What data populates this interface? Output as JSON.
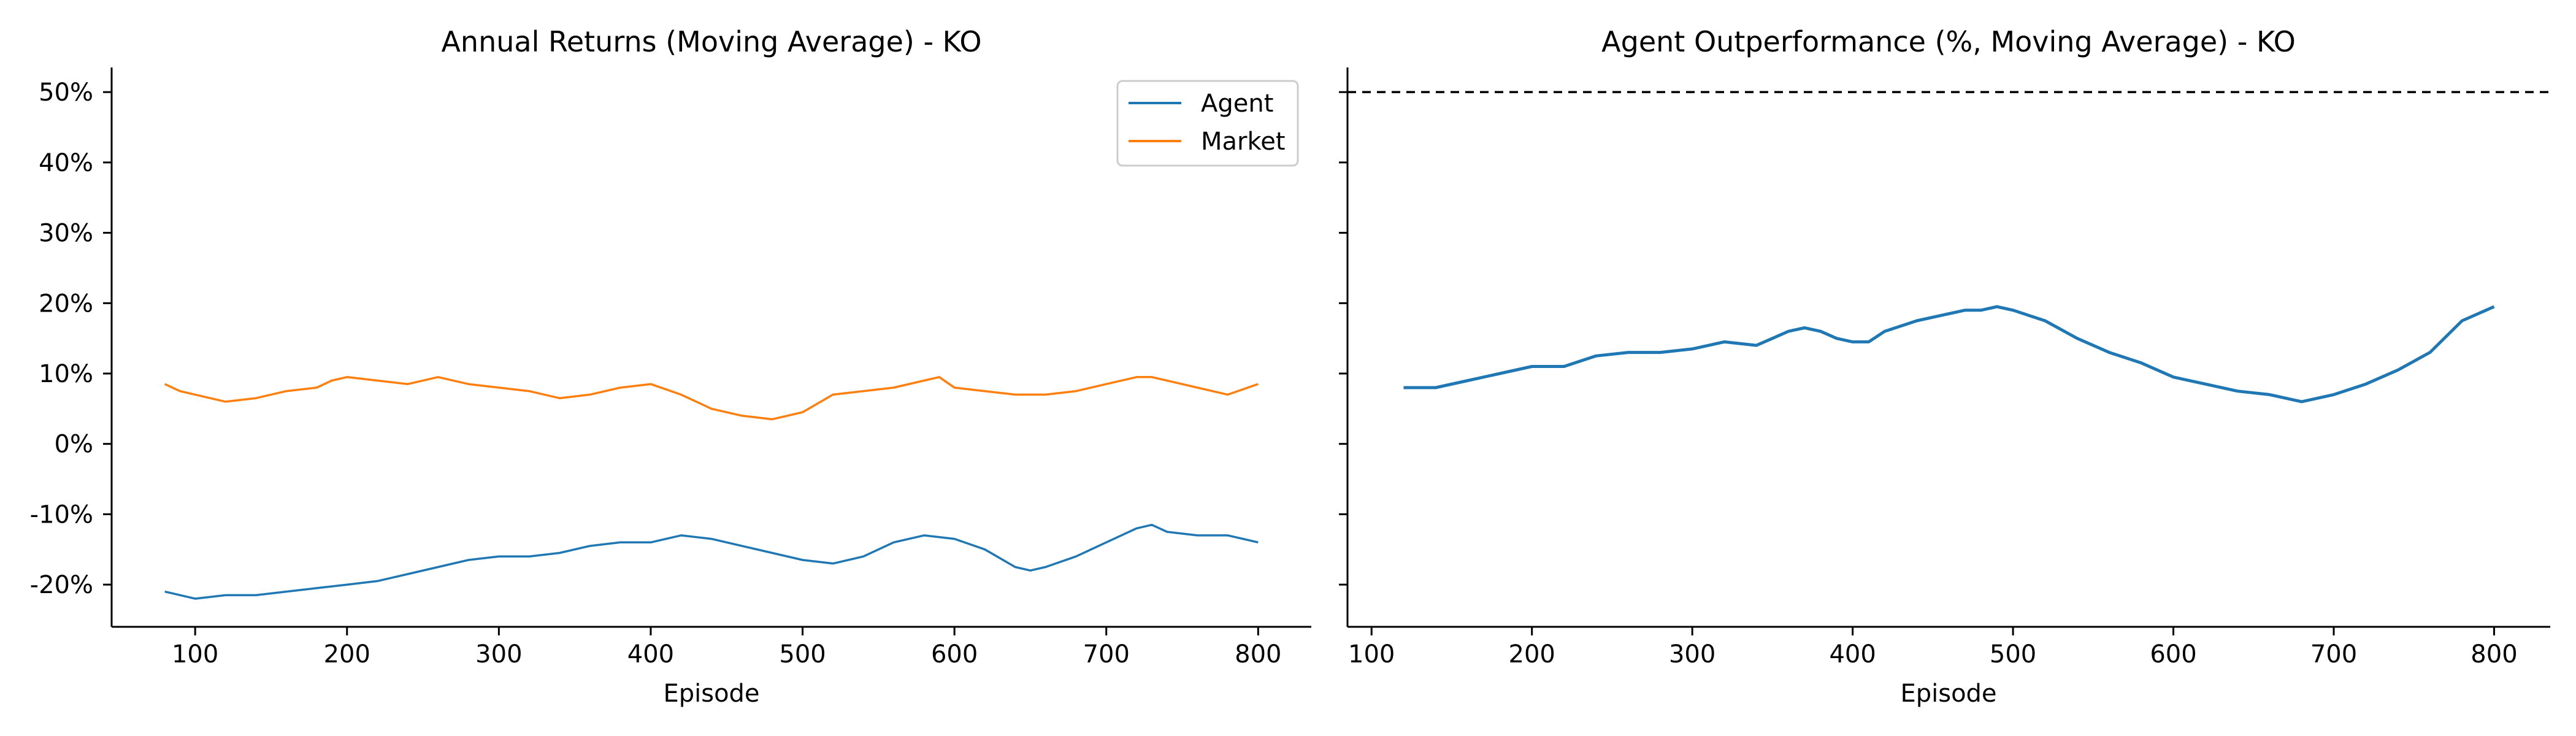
{
  "chart_data": [
    {
      "type": "line",
      "title": "Annual Returns (Moving Average) - KO",
      "xlabel": "Episode",
      "ylabel": "",
      "xlim": [
        45,
        835
      ],
      "ylim": [
        -26,
        53.5
      ],
      "xticks": [
        100,
        200,
        300,
        400,
        500,
        600,
        700,
        800
      ],
      "xtick_labels": [
        "100",
        "200",
        "300",
        "400",
        "500",
        "600",
        "700",
        "800"
      ],
      "yticks": [
        -20,
        -10,
        0,
        10,
        20,
        30,
        40,
        50
      ],
      "ytick_labels": [
        "-20%",
        "-10%",
        "0%",
        "10%",
        "20%",
        "30%",
        "40%",
        "50%"
      ],
      "legend": "top-right",
      "grid": false,
      "series": [
        {
          "name": "Agent",
          "color": "#1f77b4",
          "x": [
            80,
            100,
            120,
            140,
            160,
            180,
            200,
            220,
            240,
            260,
            280,
            300,
            320,
            340,
            360,
            380,
            400,
            420,
            440,
            460,
            480,
            500,
            520,
            540,
            560,
            580,
            600,
            620,
            640,
            650,
            660,
            680,
            700,
            720,
            730,
            740,
            760,
            780,
            800
          ],
          "y": [
            -21,
            -22,
            -21.5,
            -21.5,
            -21,
            -20.5,
            -20,
            -19.5,
            -18.5,
            -17.5,
            -16.5,
            -16,
            -16,
            -15.5,
            -14.5,
            -14,
            -14,
            -13,
            -13.5,
            -14.5,
            -15.5,
            -16.5,
            -17,
            -16,
            -14,
            -13,
            -13.5,
            -15,
            -17.5,
            -18,
            -17.5,
            -16,
            -14,
            -12,
            -11.5,
            -12.5,
            -13,
            -13,
            -14
          ]
        },
        {
          "name": "Market",
          "color": "#ff7f0e",
          "x": [
            80,
            90,
            100,
            110,
            120,
            140,
            160,
            180,
            190,
            200,
            220,
            240,
            260,
            280,
            300,
            320,
            340,
            360,
            380,
            400,
            420,
            440,
            460,
            480,
            500,
            520,
            540,
            560,
            580,
            590,
            600,
            620,
            640,
            660,
            680,
            700,
            720,
            730,
            740,
            760,
            780,
            800
          ],
          "y": [
            8.5,
            7.5,
            7,
            6.5,
            6,
            6.5,
            7.5,
            8,
            9,
            9.5,
            9,
            8.5,
            9.5,
            8.5,
            8,
            7.5,
            6.5,
            7,
            8,
            8.5,
            7,
            5,
            4,
            3.5,
            4.5,
            7,
            7.5,
            8,
            9,
            9.5,
            8,
            7.5,
            7,
            7,
            7.5,
            8.5,
            9.5,
            9.5,
            9,
            8,
            7,
            8.5
          ]
        }
      ]
    },
    {
      "type": "line",
      "title": "Agent Outperformance (%, Moving Average) - KO",
      "xlabel": "Episode",
      "ylabel": "",
      "xlim": [
        85,
        835
      ],
      "ylim": [
        -26,
        53.5
      ],
      "xticks": [
        100,
        200,
        300,
        400,
        500,
        600,
        700,
        800
      ],
      "xtick_labels": [
        "100",
        "200",
        "300",
        "400",
        "500",
        "600",
        "700",
        "800"
      ],
      "yticks": [
        -20,
        -10,
        0,
        10,
        20,
        30,
        40,
        50
      ],
      "grid": false,
      "reference_line": {
        "y": 50,
        "style": "dashed",
        "color": "#000000"
      },
      "series": [
        {
          "color": "#1f77b4",
          "x": [
            120,
            140,
            160,
            180,
            200,
            220,
            240,
            260,
            280,
            300,
            320,
            340,
            350,
            360,
            370,
            380,
            390,
            400,
            410,
            420,
            440,
            460,
            470,
            480,
            490,
            500,
            520,
            540,
            560,
            580,
            600,
            620,
            640,
            660,
            680,
            700,
            720,
            740,
            760,
            780,
            800
          ],
          "y": [
            8,
            8,
            9,
            10,
            11,
            11,
            12.5,
            13,
            13,
            13.5,
            14.5,
            14,
            15,
            16,
            16.5,
            16,
            15,
            14.5,
            14.5,
            16,
            17.5,
            18.5,
            19,
            19,
            19.5,
            19,
            17.5,
            15,
            13,
            11.5,
            9.5,
            8.5,
            7.5,
            7,
            6,
            7,
            8.5,
            10.5,
            13,
            17.5,
            19.5
          ]
        }
      ]
    }
  ]
}
